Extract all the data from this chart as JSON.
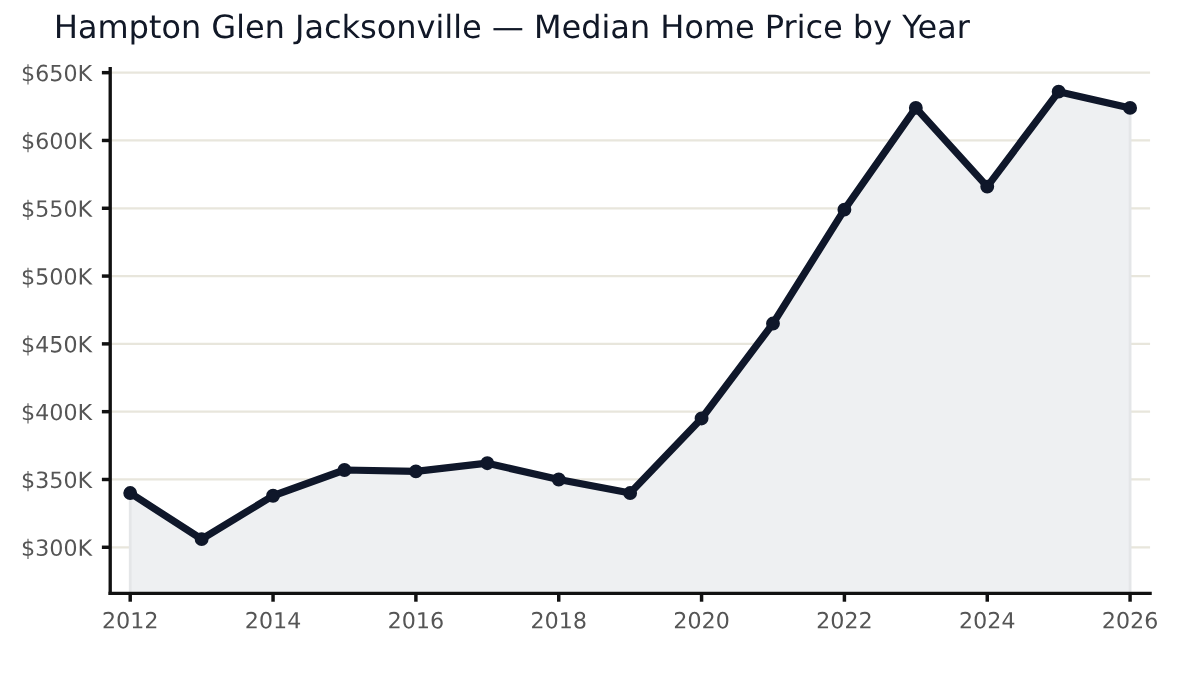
{
  "chart_data": {
    "type": "area",
    "title": "Hampton Glen Jacksonville — Median Home Price by Year",
    "x": [
      2012,
      2013,
      2014,
      2015,
      2016,
      2017,
      2018,
      2019,
      2020,
      2021,
      2022,
      2023,
      2024,
      2025,
      2026
    ],
    "series": [
      {
        "color": "#0f172a",
        "values": [
          340,
          306,
          338,
          357,
          356,
          362,
          350,
          340,
          395,
          465,
          549,
          624,
          566,
          636,
          624
        ]
      }
    ],
    "xlim": [
      2011.72,
      2026.28
    ],
    "xticks": [
      2012,
      2014,
      2016,
      2018,
      2020,
      2022,
      2024,
      2026
    ],
    "ylim": [
      266,
      653
    ],
    "yticks": [
      {
        "value": 300,
        "label": "$300K"
      },
      {
        "value": 350,
        "label": "$350K"
      },
      {
        "value": 400,
        "label": "$400K"
      },
      {
        "value": 450,
        "label": "$450K"
      },
      {
        "value": 500,
        "label": "$500K"
      },
      {
        "value": 550,
        "label": "$550K"
      },
      {
        "value": 600,
        "label": "$600K"
      },
      {
        "value": 650,
        "label": "$650K"
      }
    ],
    "grid": "y",
    "marker": "circle",
    "line_style": "solid"
  }
}
